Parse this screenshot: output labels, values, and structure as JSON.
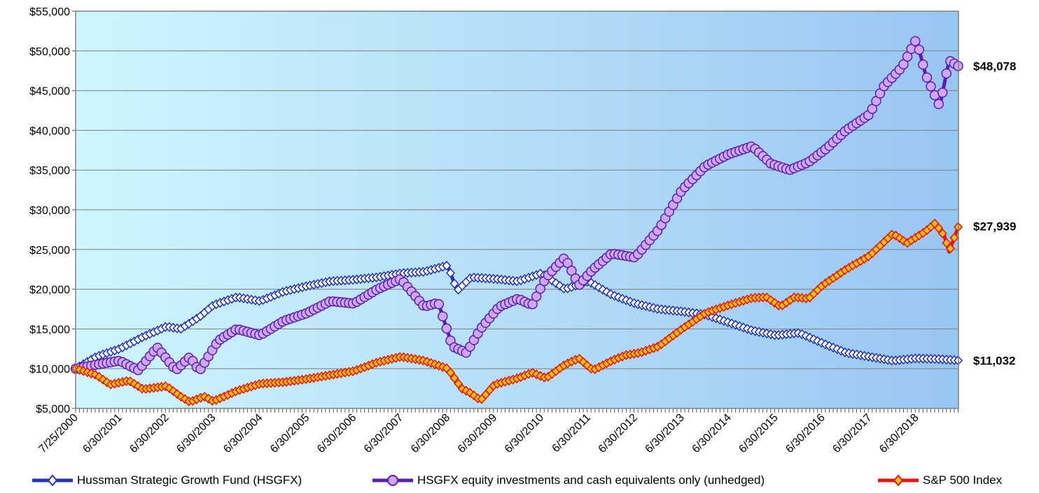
{
  "chart_data": {
    "type": "line",
    "title": "",
    "xlabel": "",
    "ylabel": "",
    "ylim": [
      5000,
      55000
    ],
    "y_ticks": [
      5000,
      10000,
      15000,
      20000,
      25000,
      30000,
      35000,
      40000,
      45000,
      50000,
      55000
    ],
    "y_tick_labels": [
      "$5,000",
      "$10,000",
      "$15,000",
      "$20,000",
      "$25,000",
      "$30,000",
      "$35,000",
      "$40,000",
      "$45,000",
      "$50,000",
      "$55,000"
    ],
    "x_tick_labels": [
      "7/25/2000",
      "6/30/2001",
      "6/30/2002",
      "6/30/2003",
      "6/30/2004",
      "6/30/2005",
      "6/30/2006",
      "6/30/2007",
      "6/30/2008",
      "6/30/2009",
      "6/30/2010",
      "6/30/2011",
      "6/30/2012",
      "6/30/2013",
      "6/30/2014",
      "6/30/2015",
      "6/30/2016",
      "6/30/2017",
      "6/30/2018"
    ],
    "x_range": [
      2000.56,
      2019.4
    ],
    "grid": "horizontal",
    "legend_position": "bottom",
    "background": "gradient light cyan to light blue",
    "series": [
      {
        "name": "Hussman Strategic Growth Fund (HSGFX)",
        "color": "#2233bb",
        "marker": "diamond",
        "marker_fill": "#ffffff",
        "end_label": "$11,032",
        "x": [
          2000.56,
          2001.0,
          2001.5,
          2002.0,
          2002.5,
          2002.8,
          2003.2,
          2003.5,
          2004.0,
          2004.5,
          2005.0,
          2005.5,
          2006.0,
          2006.5,
          2007.0,
          2007.5,
          2008.0,
          2008.5,
          2008.7,
          2009.0,
          2009.5,
          2010.0,
          2010.5,
          2011.0,
          2011.5,
          2012.0,
          2012.5,
          2013.0,
          2013.5,
          2014.0,
          2014.5,
          2015.0,
          2015.5,
          2016.0,
          2016.5,
          2017.0,
          2017.5,
          2018.0,
          2018.5,
          2019.0,
          2019.4
        ],
        "values": [
          10000,
          11500,
          12500,
          14000,
          15300,
          15000,
          16500,
          18000,
          19000,
          18500,
          19700,
          20400,
          21000,
          21200,
          21500,
          22000,
          22200,
          23000,
          19800,
          21500,
          21300,
          21000,
          22000,
          20000,
          21000,
          19300,
          18200,
          17500,
          17200,
          16800,
          15800,
          14800,
          14200,
          14500,
          13200,
          12000,
          11500,
          11000,
          11300,
          11200,
          11032
        ]
      },
      {
        "name": "HSGFX equity investments and cash equivalents only (unhedged)",
        "color": "#5a1fb0",
        "marker": "circle",
        "marker_fill": "#cfa6f2",
        "end_label": "$48,078",
        "x": [
          2000.56,
          2001.0,
          2001.5,
          2001.9,
          2002.3,
          2002.7,
          2003.0,
          2003.2,
          2003.6,
          2004.0,
          2004.5,
          2005.0,
          2005.5,
          2006.0,
          2006.5,
          2007.0,
          2007.5,
          2008.0,
          2008.3,
          2008.6,
          2008.9,
          2009.2,
          2009.6,
          2010.0,
          2010.3,
          2010.6,
          2011.0,
          2011.3,
          2011.6,
          2012.0,
          2012.5,
          2013.0,
          2013.5,
          2014.0,
          2014.5,
          2015.0,
          2015.4,
          2015.8,
          2016.2,
          2016.6,
          2017.0,
          2017.5,
          2017.8,
          2018.2,
          2018.5,
          2018.7,
          2019.0,
          2019.2,
          2019.4
        ],
        "values": [
          10000,
          10500,
          11000,
          9800,
          12700,
          9800,
          11500,
          9700,
          13500,
          15000,
          14200,
          16000,
          17000,
          18500,
          18200,
          20000,
          21300,
          17800,
          18300,
          12800,
          12000,
          15000,
          17800,
          18800,
          18000,
          21500,
          24000,
          20500,
          22500,
          24500,
          24000,
          27500,
          32500,
          35500,
          37000,
          38000,
          35800,
          35000,
          36000,
          37800,
          40000,
          42000,
          45500,
          48000,
          51500,
          47000,
          43000,
          48800,
          48078
        ]
      },
      {
        "name": "S&P 500 Index",
        "color": "#ee1111",
        "marker": "diamond",
        "marker_fill": "#ffc000",
        "end_label": "$27,939",
        "x": [
          2000.56,
          2001.0,
          2001.3,
          2001.7,
          2002.0,
          2002.5,
          2002.8,
          2003.0,
          2003.3,
          2003.5,
          2004.0,
          2004.5,
          2005.0,
          2005.5,
          2006.0,
          2006.5,
          2007.0,
          2007.5,
          2008.0,
          2008.5,
          2008.8,
          2009.0,
          2009.2,
          2009.5,
          2010.0,
          2010.3,
          2010.6,
          2011.0,
          2011.3,
          2011.6,
          2012.0,
          2012.3,
          2012.6,
          2013.0,
          2013.5,
          2014.0,
          2014.5,
          2015.0,
          2015.3,
          2015.6,
          2015.9,
          2016.2,
          2016.5,
          2017.0,
          2017.5,
          2018.0,
          2018.3,
          2018.7,
          2018.9,
          2019.1,
          2019.2,
          2019.4
        ],
        "values": [
          10000,
          9200,
          8000,
          8500,
          7400,
          7800,
          6500,
          5800,
          6500,
          5900,
          7200,
          8100,
          8300,
          8700,
          9200,
          9700,
          10800,
          11500,
          11000,
          10000,
          7500,
          6900,
          6000,
          8000,
          8800,
          9500,
          8800,
          10500,
          11300,
          9800,
          11000,
          11700,
          12000,
          12800,
          15000,
          17000,
          18000,
          18900,
          19000,
          17800,
          19000,
          18800,
          20500,
          22500,
          24200,
          27000,
          25800,
          27300,
          28300,
          26700,
          24700,
          27939
        ]
      }
    ]
  }
}
